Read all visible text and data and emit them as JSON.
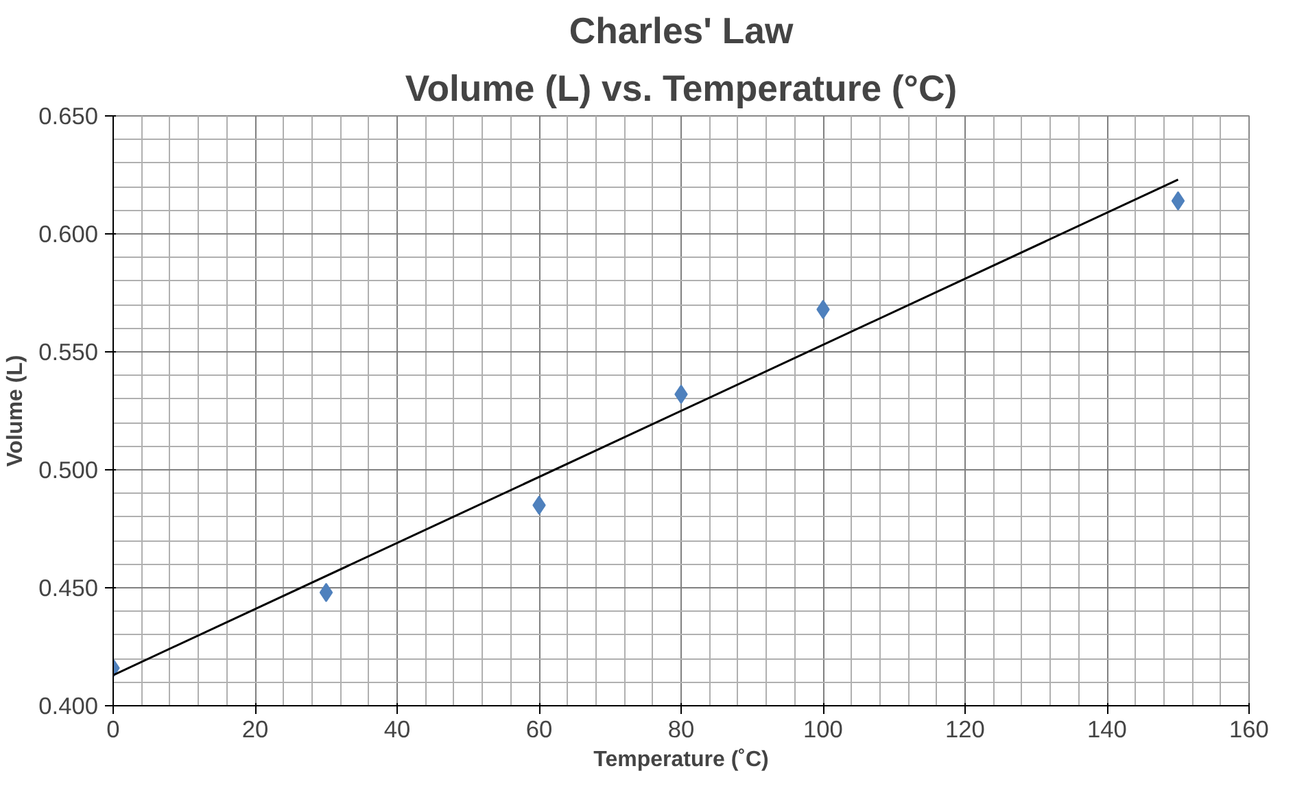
{
  "chart_data": {
    "type": "scatter",
    "title": "Charles' Law",
    "subtitle": "Volume (L) vs. Temperature (°C)",
    "xlabel": "Temperature (˚C)",
    "ylabel": "Volume (L)",
    "xlim": [
      0,
      160
    ],
    "xticks": [
      0,
      20,
      40,
      60,
      80,
      100,
      120,
      140,
      160
    ],
    "ylim": [
      0.4,
      0.65
    ],
    "yticks": [
      {
        "value": 0.4,
        "label": "0.400"
      },
      {
        "value": 0.45,
        "label": "0.450"
      },
      {
        "value": 0.5,
        "label": "0.500"
      },
      {
        "value": 0.55,
        "label": "0.550"
      },
      {
        "value": 0.6,
        "label": "0.600"
      },
      {
        "value": 0.65,
        "label": "0.650"
      }
    ],
    "grid": true,
    "marker": "diamond",
    "series": [
      {
        "color": "#4f81bd",
        "x": [
          0,
          30,
          60,
          80,
          100,
          150
        ],
        "values": [
          0.416,
          0.448,
          0.485,
          0.532,
          0.568,
          0.614
        ]
      },
      {
        "type": "line",
        "color": "#000000",
        "x": [
          0,
          150
        ],
        "values": [
          0.413,
          0.623
        ],
        "marker": "none"
      }
    ]
  }
}
